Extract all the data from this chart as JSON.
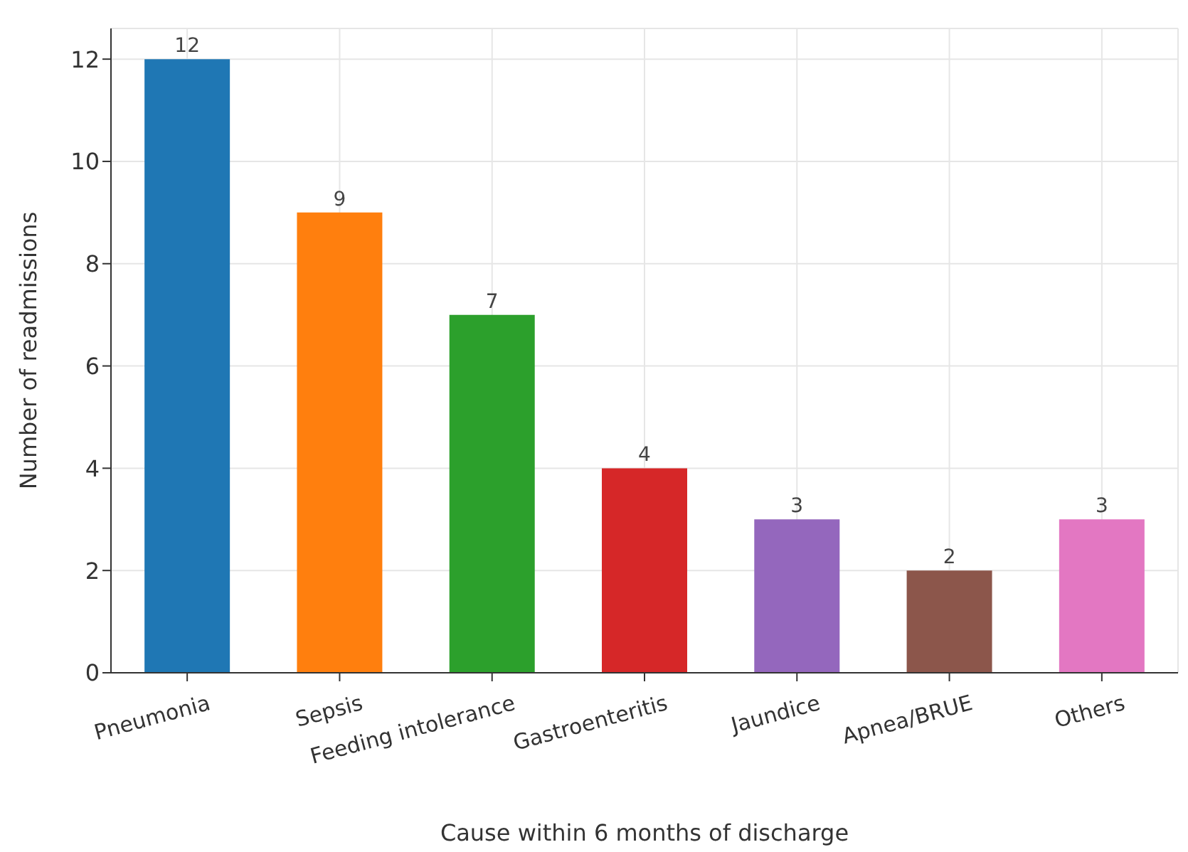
{
  "chart_data": {
    "type": "bar",
    "xlabel": "Cause within 6 months of discharge",
    "ylabel": "Number of readmissions",
    "categories": [
      "Pneumonia",
      "Sepsis",
      "Feeding intolerance",
      "Gastroenteritis",
      "Jaundice",
      "Apnea/BRUE",
      "Others"
    ],
    "values": [
      12,
      9,
      7,
      4,
      3,
      2,
      3
    ],
    "colors": [
      "#1f77b4",
      "#ff7f0e",
      "#2ca02c",
      "#d62728",
      "#9467bd",
      "#8c564b",
      "#e377c2"
    ],
    "ylim": [
      0,
      12.6
    ],
    "yticks": [
      0,
      2,
      4,
      6,
      8,
      10,
      12
    ],
    "grid": true,
    "data_labels": true
  }
}
